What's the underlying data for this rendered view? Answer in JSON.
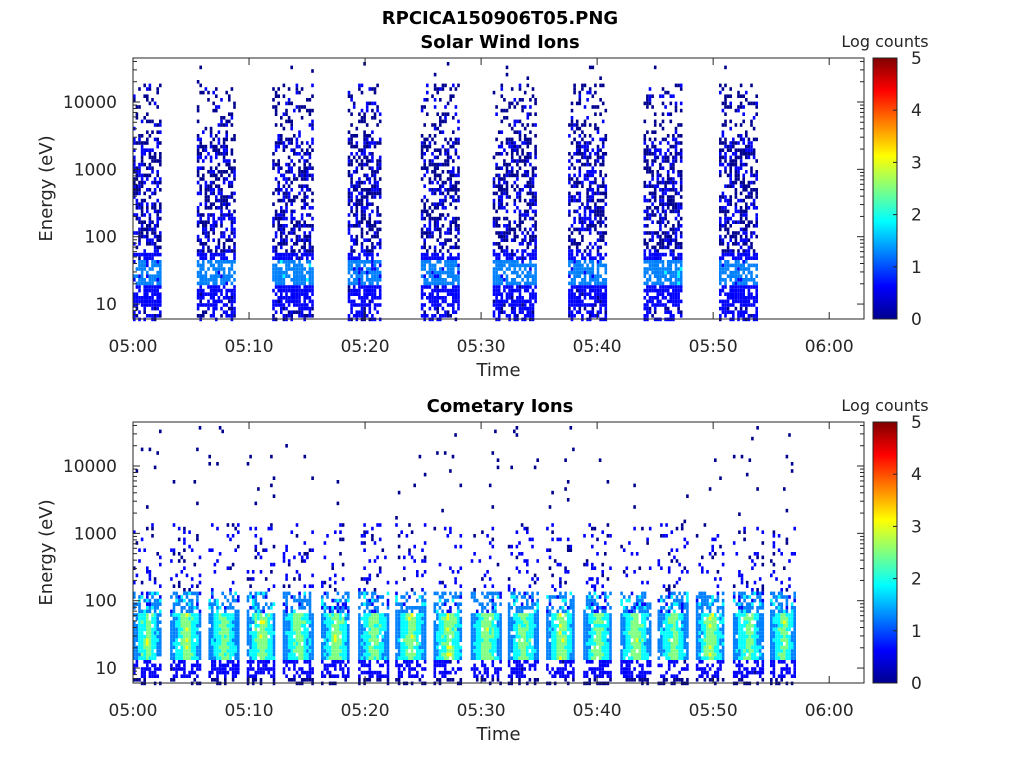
{
  "figure_title": "RPCICA150906T05.PNG",
  "colormap": [
    "#00008f",
    "#0000ff",
    "#0080ff",
    "#00ffff",
    "#80ff80",
    "#ffff00",
    "#ff8000",
    "#ff0000",
    "#800000"
  ],
  "chart_data": [
    {
      "type": "heatmap",
      "title": "Solar Wind Ions",
      "xlabel": "Time",
      "ylabel": "Energy (eV)",
      "x_ticks": [
        "05:00",
        "05:10",
        "05:20",
        "05:30",
        "05:40",
        "05:50",
        "06:00"
      ],
      "xlim": [
        "05:00",
        "06:03"
      ],
      "y_scale": "log",
      "y_ticks": [
        10,
        100,
        1000,
        10000
      ],
      "y_tick_labels": [
        "10",
        "100",
        "1000",
        "10000"
      ],
      "ylim": [
        6,
        45000
      ],
      "colorbar": {
        "label": "Log counts",
        "range": [
          0,
          5
        ],
        "ticks": [
          "0",
          "1",
          "2",
          "3",
          "4",
          "5"
        ]
      },
      "data_end_time": "05:57",
      "bursts": [
        {
          "start_min": 0.0,
          "end_min": 2.3,
          "peak_log_counts": 1.4
        },
        {
          "start_min": 5.5,
          "end_min": 8.8,
          "peak_log_counts": 1.5
        },
        {
          "start_min": 12.0,
          "end_min": 15.5,
          "peak_log_counts": 1.6
        },
        {
          "start_min": 18.5,
          "end_min": 21.3,
          "peak_log_counts": 1.4
        },
        {
          "start_min": 24.8,
          "end_min": 28.0,
          "peak_log_counts": 1.5
        },
        {
          "start_min": 31.0,
          "end_min": 34.8,
          "peak_log_counts": 1.5
        },
        {
          "start_min": 37.5,
          "end_min": 40.8,
          "peak_log_counts": 1.5
        },
        {
          "start_min": 44.0,
          "end_min": 47.3,
          "peak_log_counts": 1.6
        },
        {
          "start_min": 50.5,
          "end_min": 53.8,
          "peak_log_counts": 1.5
        }
      ]
    },
    {
      "type": "heatmap",
      "title": "Cometary Ions",
      "xlabel": "Time",
      "ylabel": "Energy (eV)",
      "x_ticks": [
        "05:00",
        "05:10",
        "05:20",
        "05:30",
        "05:40",
        "05:50",
        "06:00"
      ],
      "xlim": [
        "05:00",
        "06:03"
      ],
      "y_scale": "log",
      "y_ticks": [
        10,
        100,
        1000,
        10000
      ],
      "y_tick_labels": [
        "10",
        "100",
        "1000",
        "10000"
      ],
      "ylim": [
        6,
        45000
      ],
      "colorbar": {
        "label": "Log counts",
        "range": [
          0,
          5
        ],
        "ticks": [
          "0",
          "1",
          "2",
          "3",
          "4",
          "5"
        ]
      },
      "data_end_time": "05:57",
      "bursts": [
        {
          "start_min": 0.0,
          "end_min": 2.3,
          "peak_log_counts": 2.8
        },
        {
          "start_min": 3.2,
          "end_min": 5.8,
          "peak_log_counts": 2.9
        },
        {
          "start_min": 6.5,
          "end_min": 9.0,
          "peak_log_counts": 2.8
        },
        {
          "start_min": 9.8,
          "end_min": 12.2,
          "peak_log_counts": 2.9
        },
        {
          "start_min": 12.9,
          "end_min": 15.4,
          "peak_log_counts": 2.8
        },
        {
          "start_min": 16.2,
          "end_min": 18.6,
          "peak_log_counts": 2.9
        },
        {
          "start_min": 19.4,
          "end_min": 21.9,
          "peak_log_counts": 2.8
        },
        {
          "start_min": 22.6,
          "end_min": 25.1,
          "peak_log_counts": 2.9
        },
        {
          "start_min": 25.9,
          "end_min": 28.3,
          "peak_log_counts": 3.0
        },
        {
          "start_min": 29.1,
          "end_min": 31.6,
          "peak_log_counts": 2.9
        },
        {
          "start_min": 32.3,
          "end_min": 34.8,
          "peak_log_counts": 2.8
        },
        {
          "start_min": 35.6,
          "end_min": 38.0,
          "peak_log_counts": 2.9
        },
        {
          "start_min": 38.8,
          "end_min": 41.2,
          "peak_log_counts": 2.8
        },
        {
          "start_min": 42.0,
          "end_min": 44.5,
          "peak_log_counts": 2.9
        },
        {
          "start_min": 45.2,
          "end_min": 47.7,
          "peak_log_counts": 2.8
        },
        {
          "start_min": 48.5,
          "end_min": 50.9,
          "peak_log_counts": 2.9
        },
        {
          "start_min": 51.7,
          "end_min": 54.2,
          "peak_log_counts": 2.8
        },
        {
          "start_min": 54.9,
          "end_min": 57.0,
          "peak_log_counts": 2.8
        }
      ]
    }
  ]
}
